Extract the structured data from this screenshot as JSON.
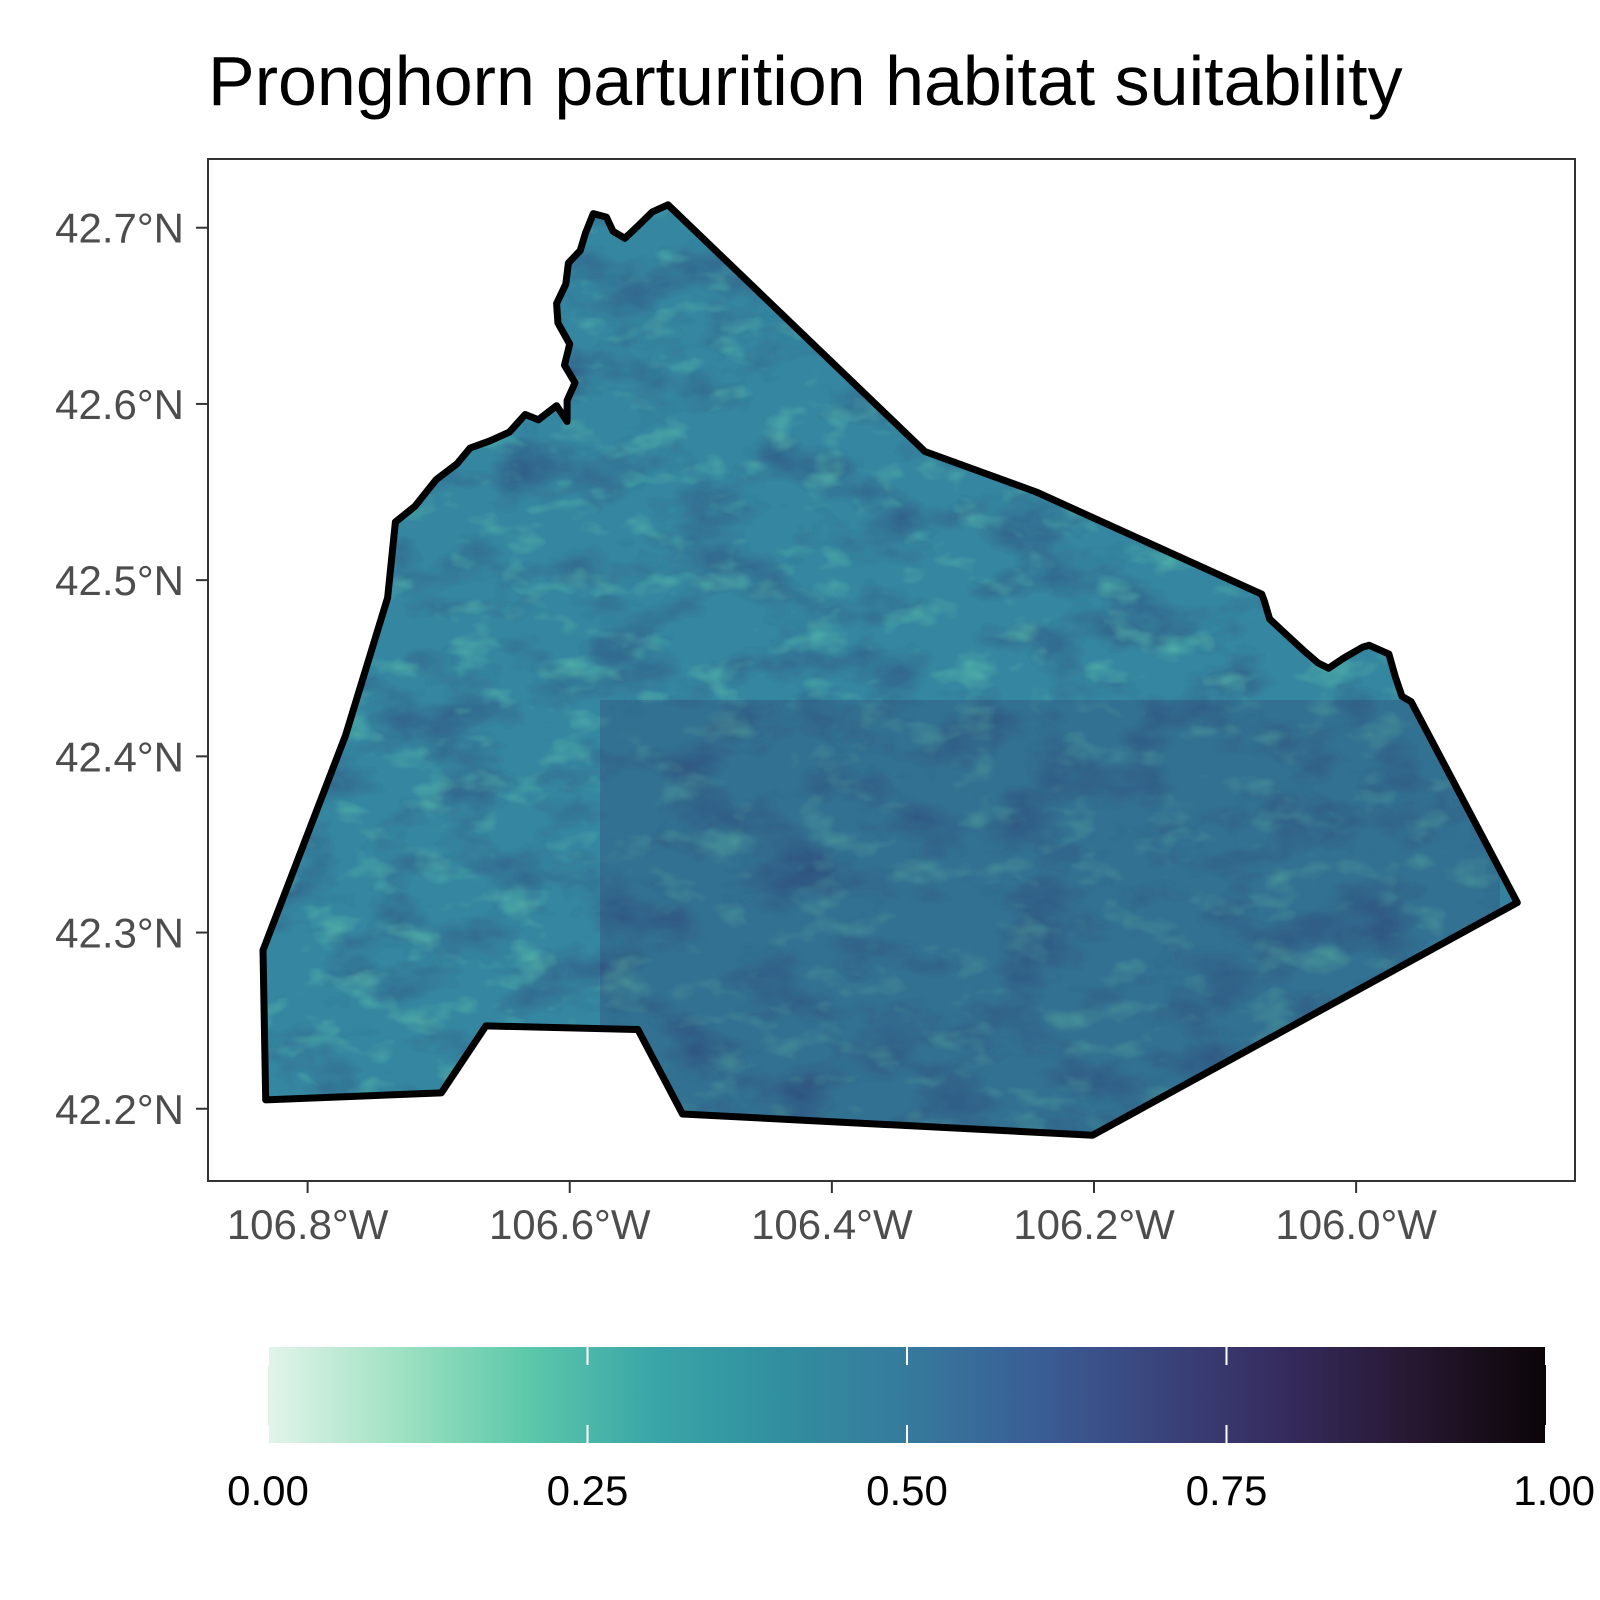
{
  "title": "Pronghorn parturition habitat suitability",
  "map": {
    "x_axis": {
      "ticks": [
        {
          "value": -106.8,
          "label": "106.8°W"
        },
        {
          "value": -106.6,
          "label": "106.6°W"
        },
        {
          "value": -106.4,
          "label": "106.4°W"
        },
        {
          "value": -106.2,
          "label": "106.2°W"
        },
        {
          "value": -106.0,
          "label": "106.0°W"
        }
      ],
      "range": [
        -106.876,
        -105.833
      ]
    },
    "y_axis": {
      "ticks": [
        {
          "value": 42.2,
          "label": "42.2°N"
        },
        {
          "value": 42.3,
          "label": "42.3°N"
        },
        {
          "value": 42.4,
          "label": "42.4°N"
        },
        {
          "value": 42.5,
          "label": "42.5°N"
        },
        {
          "value": 42.6,
          "label": "42.6°N"
        },
        {
          "value": 42.7,
          "label": "42.7°N"
        }
      ],
      "range": [
        42.159,
        42.739
      ]
    },
    "boundary_lonlat": [
      [
        -106.832,
        42.205
      ],
      [
        -106.698,
        42.209
      ],
      [
        -106.664,
        42.247
      ],
      [
        -106.548,
        42.245
      ],
      [
        -106.514,
        42.197
      ],
      [
        -106.201,
        42.185
      ],
      [
        -105.877,
        42.317
      ],
      [
        -105.958,
        42.431
      ],
      [
        -105.965,
        42.434
      ],
      [
        -105.97,
        42.445
      ],
      [
        -105.975,
        42.458
      ],
      [
        -105.99,
        42.463
      ],
      [
        -105.995,
        42.462
      ],
      [
        -106.009,
        42.456
      ],
      [
        -106.021,
        42.45
      ],
      [
        -106.029,
        42.453
      ],
      [
        -106.04,
        42.46
      ],
      [
        -106.056,
        42.471
      ],
      [
        -106.066,
        42.478
      ],
      [
        -106.07,
        42.488
      ],
      [
        -106.072,
        42.492
      ],
      [
        -106.244,
        42.55
      ],
      [
        -106.329,
        42.573
      ],
      [
        -106.525,
        42.713
      ],
      [
        -106.537,
        42.709
      ],
      [
        -106.548,
        42.701
      ],
      [
        -106.558,
        42.694
      ],
      [
        -106.567,
        42.698
      ],
      [
        -106.572,
        42.706
      ],
      [
        -106.582,
        42.708
      ],
      [
        -106.588,
        42.697
      ],
      [
        -106.592,
        42.687
      ],
      [
        -106.601,
        42.68
      ],
      [
        -106.603,
        42.668
      ],
      [
        -106.61,
        42.657
      ],
      [
        -106.609,
        42.646
      ],
      [
        -106.6,
        42.634
      ],
      [
        -106.604,
        42.622
      ],
      [
        -106.596,
        42.612
      ],
      [
        -106.602,
        42.602
      ],
      [
        -106.602,
        42.59
      ],
      [
        -106.61,
        42.599
      ],
      [
        -106.624,
        42.591
      ],
      [
        -106.634,
        42.594
      ],
      [
        -106.646,
        42.584
      ],
      [
        -106.661,
        42.579
      ],
      [
        -106.676,
        42.575
      ],
      [
        -106.686,
        42.566
      ],
      [
        -106.702,
        42.557
      ],
      [
        -106.718,
        42.542
      ],
      [
        -106.733,
        42.533
      ],
      [
        -106.739,
        42.49
      ],
      [
        -106.771,
        42.412
      ],
      [
        -106.834,
        42.29
      ]
    ],
    "legend": {
      "ticks": [
        {
          "value": 0.0,
          "label": "0.00"
        },
        {
          "value": 0.25,
          "label": "0.25"
        },
        {
          "value": 0.5,
          "label": "0.50"
        },
        {
          "value": 0.75,
          "label": "0.75"
        },
        {
          "value": 1.0,
          "label": "1.00"
        }
      ],
      "range": [
        0,
        1
      ],
      "colors": [
        "#e3f4ea",
        "#a1e2c4",
        "#5ec9aa",
        "#3aa6a8",
        "#318f9f",
        "#367a9d",
        "#3a5e96",
        "#3a437b",
        "#352a5c",
        "#26172f",
        "#0b0508"
      ]
    },
    "colors": {
      "boundary": "#000000",
      "panel_border": "#333333",
      "gap_pixel": "#ffffff"
    }
  }
}
